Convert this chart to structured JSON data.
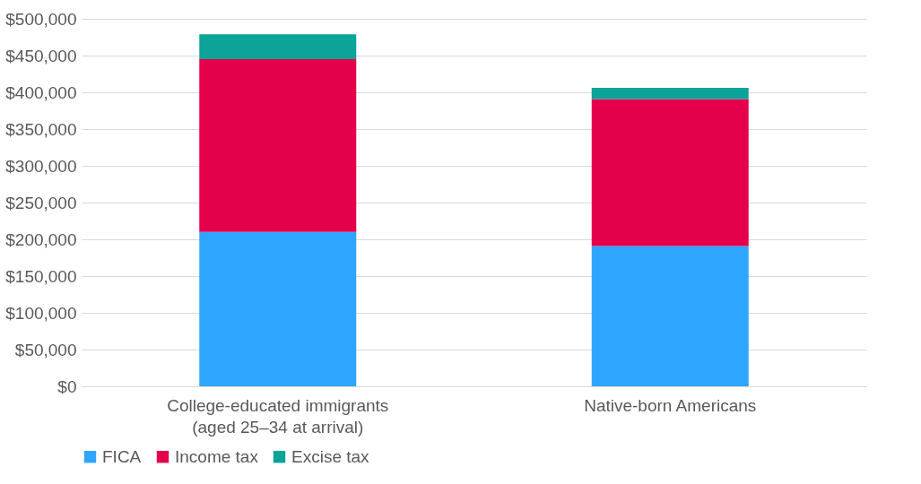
{
  "chart_data": {
    "type": "bar",
    "stacked": true,
    "categories": [
      "College-educated immigrants\n(aged 25–34 at arrival)",
      "Native-born Americans"
    ],
    "series": [
      {
        "name": "FICA",
        "color": "#2ea6ff",
        "values": [
          210000,
          191000
        ]
      },
      {
        "name": "Income tax",
        "color": "#e4004b",
        "values": [
          235000,
          200000
        ]
      },
      {
        "name": "Excise tax",
        "color": "#0ca398",
        "values": [
          34000,
          15000
        ]
      }
    ],
    "ylim": [
      0,
      500000
    ],
    "yticks": [
      {
        "value": 0,
        "label": "$0"
      },
      {
        "value": 50000,
        "label": "$50,000"
      },
      {
        "value": 100000,
        "label": "$100,000"
      },
      {
        "value": 150000,
        "label": "$150,000"
      },
      {
        "value": 200000,
        "label": "$200,000"
      },
      {
        "value": 250000,
        "label": "$250,000"
      },
      {
        "value": 300000,
        "label": "$300,000"
      },
      {
        "value": 350000,
        "label": "$350,000"
      },
      {
        "value": 400000,
        "label": "$400,000"
      },
      {
        "value": 450000,
        "label": "$450,000"
      },
      {
        "value": 500000,
        "label": "$500,000"
      }
    ],
    "grid": "y",
    "legend": "bottom"
  }
}
